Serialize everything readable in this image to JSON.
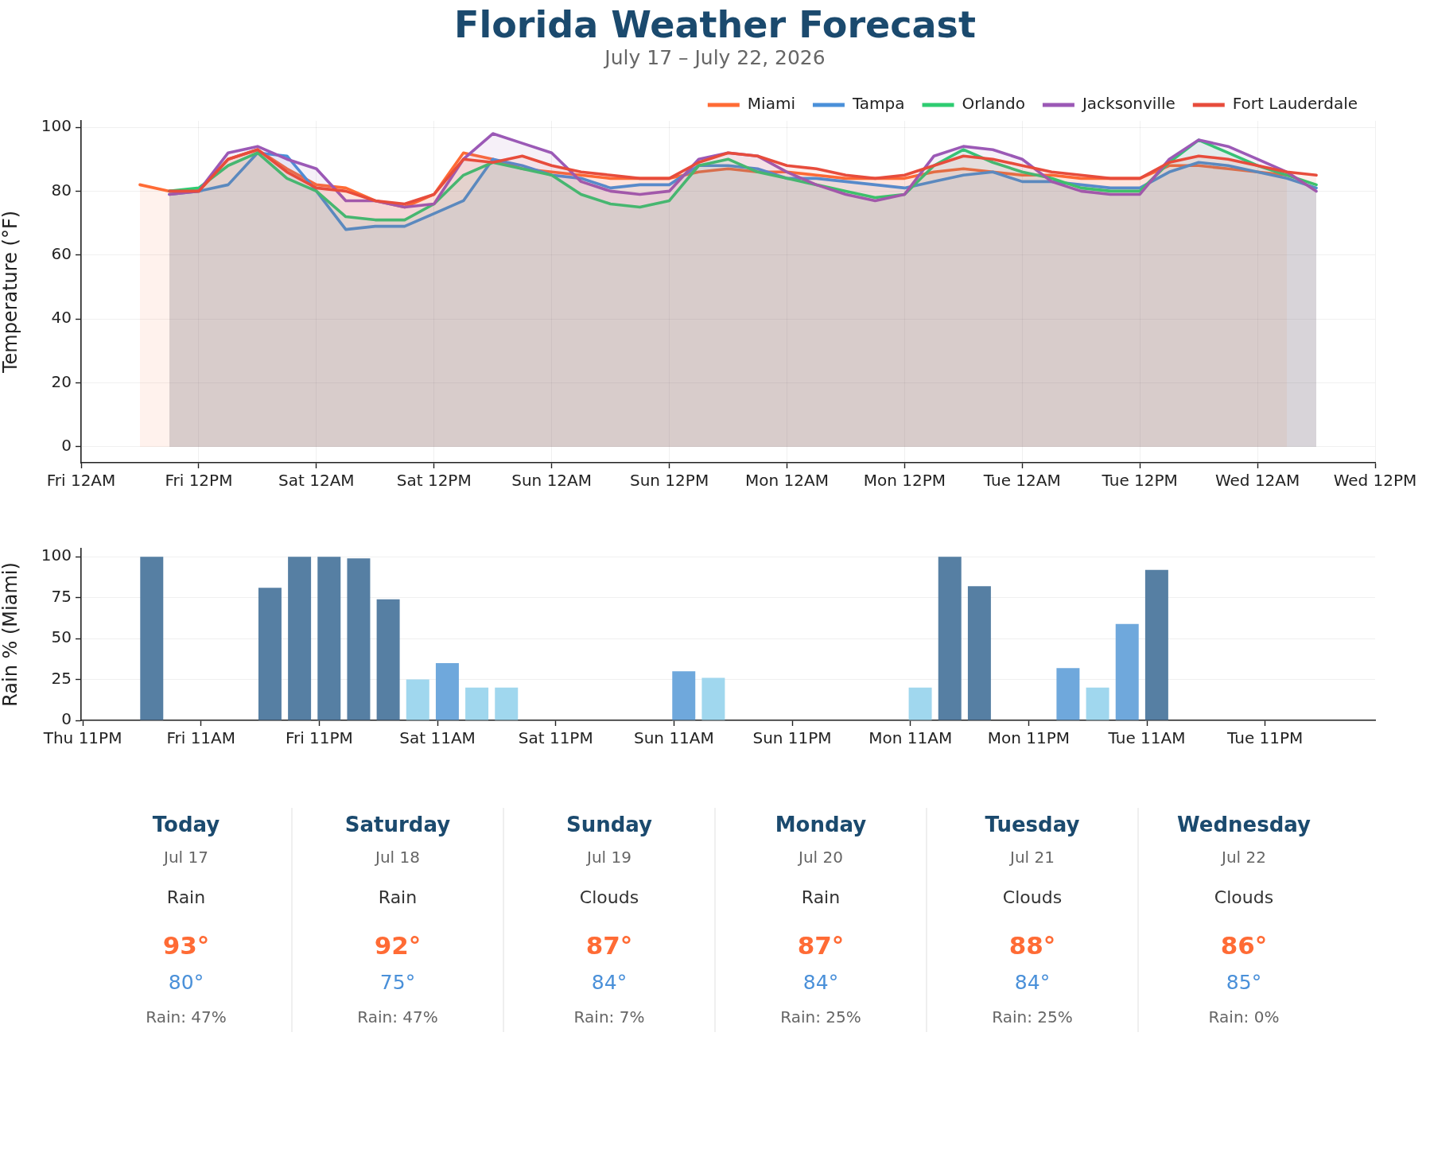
{
  "chart_data": [
    {
      "type": "area",
      "title": "Florida Weather Forecast",
      "subtitle": "July 17 – July 22, 2026",
      "ylabel": "Temperature (°F)",
      "x": [
        "2026-07-17T06:00",
        "2026-07-17T09:00",
        "2026-07-17T12:00",
        "2026-07-17T15:00",
        "2026-07-17T18:00",
        "2026-07-17T21:00",
        "2026-07-18T00:00",
        "2026-07-18T03:00",
        "2026-07-18T06:00",
        "2026-07-18T09:00",
        "2026-07-18T12:00",
        "2026-07-18T15:00",
        "2026-07-18T18:00",
        "2026-07-18T21:00",
        "2026-07-19T00:00",
        "2026-07-19T03:00",
        "2026-07-19T06:00",
        "2026-07-19T09:00",
        "2026-07-19T12:00",
        "2026-07-19T15:00",
        "2026-07-19T18:00",
        "2026-07-19T21:00",
        "2026-07-20T00:00",
        "2026-07-20T03:00",
        "2026-07-20T06:00",
        "2026-07-20T09:00",
        "2026-07-20T12:00",
        "2026-07-20T15:00",
        "2026-07-20T18:00",
        "2026-07-20T21:00",
        "2026-07-21T00:00",
        "2026-07-21T03:00",
        "2026-07-21T06:00",
        "2026-07-21T09:00",
        "2026-07-21T12:00",
        "2026-07-21T15:00",
        "2026-07-21T18:00",
        "2026-07-21T21:00",
        "2026-07-22T00:00",
        "2026-07-22T03:00",
        "2026-07-22T06:00"
      ],
      "series": [
        {
          "name": "Miami",
          "color": "#ff6b35",
          "values": [
            82,
            80,
            80,
            90,
            93,
            87,
            82,
            81,
            77,
            75,
            79,
            92,
            90,
            87,
            86,
            85,
            84,
            84,
            84,
            86,
            87,
            86,
            86,
            85,
            84,
            84,
            84,
            86,
            87,
            86,
            85,
            85,
            84,
            84,
            84,
            88,
            88,
            87,
            86,
            85,
            null
          ]
        },
        {
          "name": "Tampa",
          "color": "#4a90d9",
          "values": [
            null,
            79,
            80,
            82,
            92,
            91,
            80,
            68,
            69,
            69,
            73,
            77,
            90,
            88,
            85,
            84,
            81,
            82,
            82,
            88,
            88,
            87,
            84,
            84,
            83,
            82,
            81,
            83,
            85,
            86,
            83,
            83,
            82,
            81,
            81,
            86,
            89,
            88,
            86,
            84,
            81
          ]
        },
        {
          "name": "Orlando",
          "color": "#2ecc71",
          "values": [
            null,
            80,
            81,
            88,
            92,
            84,
            80,
            72,
            71,
            71,
            76,
            85,
            89,
            87,
            85,
            79,
            76,
            75,
            77,
            88,
            90,
            86,
            84,
            82,
            80,
            78,
            79,
            88,
            93,
            89,
            86,
            84,
            81,
            80,
            80,
            89,
            96,
            92,
            88,
            85,
            82
          ]
        },
        {
          "name": "Jacksonville",
          "color": "#9b59b6",
          "values": [
            null,
            79,
            80,
            92,
            94,
            90,
            87,
            77,
            77,
            75,
            76,
            90,
            98,
            95,
            92,
            83,
            80,
            79,
            80,
            90,
            92,
            91,
            86,
            82,
            79,
            77,
            79,
            91,
            94,
            93,
            90,
            83,
            80,
            79,
            79,
            90,
            96,
            94,
            90,
            86,
            80
          ]
        },
        {
          "name": "Fort Lauderdale",
          "color": "#e74c3c",
          "values": [
            null,
            80,
            80,
            90,
            93,
            86,
            81,
            80,
            77,
            76,
            79,
            90,
            89,
            91,
            88,
            86,
            85,
            84,
            84,
            89,
            92,
            91,
            88,
            87,
            85,
            84,
            85,
            88,
            91,
            90,
            88,
            86,
            85,
            84,
            84,
            89,
            91,
            90,
            88,
            86,
            85
          ]
        }
      ],
      "xlim": [
        "2026-07-17T00:00",
        "2026-07-22T12:00"
      ],
      "xticks": [
        {
          "value": "2026-07-17T00:00",
          "label": "Fri 12AM"
        },
        {
          "value": "2026-07-17T12:00",
          "label": "Fri 12PM"
        },
        {
          "value": "2026-07-18T00:00",
          "label": "Sat 12AM"
        },
        {
          "value": "2026-07-18T12:00",
          "label": "Sat 12PM"
        },
        {
          "value": "2026-07-19T00:00",
          "label": "Sun 12AM"
        },
        {
          "value": "2026-07-19T12:00",
          "label": "Sun 12PM"
        },
        {
          "value": "2026-07-20T00:00",
          "label": "Mon 12AM"
        },
        {
          "value": "2026-07-20T12:00",
          "label": "Mon 12PM"
        },
        {
          "value": "2026-07-21T00:00",
          "label": "Tue 12AM"
        },
        {
          "value": "2026-07-21T12:00",
          "label": "Tue 12PM"
        },
        {
          "value": "2026-07-22T00:00",
          "label": "Wed 12AM"
        },
        {
          "value": "2026-07-22T12:00",
          "label": "Wed 12PM"
        }
      ],
      "ylim": [
        -5,
        102
      ],
      "yticks": [
        0,
        20,
        40,
        60,
        80,
        100
      ],
      "grid": true,
      "legend": "top right"
    },
    {
      "type": "bar",
      "ylabel": "Rain % (Miami)",
      "x": [
        "2026-07-17T06:00",
        "2026-07-17T09:00",
        "2026-07-17T12:00",
        "2026-07-17T15:00",
        "2026-07-17T18:00",
        "2026-07-17T21:00",
        "2026-07-18T00:00",
        "2026-07-18T03:00",
        "2026-07-18T06:00",
        "2026-07-18T09:00",
        "2026-07-18T12:00",
        "2026-07-18T15:00",
        "2026-07-18T18:00",
        "2026-07-18T21:00",
        "2026-07-19T00:00",
        "2026-07-19T03:00",
        "2026-07-19T06:00",
        "2026-07-19T09:00",
        "2026-07-19T12:00",
        "2026-07-19T15:00",
        "2026-07-19T18:00",
        "2026-07-19T21:00",
        "2026-07-20T00:00",
        "2026-07-20T03:00",
        "2026-07-20T06:00",
        "2026-07-20T09:00",
        "2026-07-20T12:00",
        "2026-07-20T15:00",
        "2026-07-20T18:00",
        "2026-07-20T21:00",
        "2026-07-21T00:00",
        "2026-07-21T03:00",
        "2026-07-21T06:00",
        "2026-07-21T09:00",
        "2026-07-21T12:00",
        "2026-07-21T15:00",
        "2026-07-21T18:00",
        "2026-07-21T21:00",
        "2026-07-22T00:00",
        "2026-07-22T03:00"
      ],
      "values": [
        100,
        0,
        0,
        0,
        81,
        100,
        100,
        99,
        74,
        25,
        35,
        20,
        20,
        0,
        0,
        0,
        0,
        0,
        30,
        26,
        0,
        0,
        0,
        0,
        0,
        0,
        20,
        100,
        82,
        0,
        0,
        32,
        20,
        59,
        92,
        0,
        0,
        0,
        0,
        0
      ],
      "colors": [
        "#567fa3",
        "#a0d7ee",
        "#a0d7ee",
        "#a0d7ee",
        "#567fa3",
        "#567fa3",
        "#567fa3",
        "#567fa3",
        "#567fa3",
        "#a0d7ee",
        "#6fa8dc",
        "#a0d7ee",
        "#a0d7ee",
        "#a0d7ee",
        "#a0d7ee",
        "#a0d7ee",
        "#a0d7ee",
        "#a0d7ee",
        "#6fa8dc",
        "#a0d7ee",
        "#a0d7ee",
        "#a0d7ee",
        "#a0d7ee",
        "#a0d7ee",
        "#a0d7ee",
        "#a0d7ee",
        "#a0d7ee",
        "#567fa3",
        "#567fa3",
        "#a0d7ee",
        "#a0d7ee",
        "#6fa8dc",
        "#a0d7ee",
        "#6fa8dc",
        "#567fa3",
        "#a0d7ee",
        "#a0d7ee",
        "#a0d7ee",
        "#a0d7ee",
        "#a0d7ee"
      ],
      "xlim": [
        "2026-07-16T22:50",
        "2026-07-22T10:10"
      ],
      "xticks": [
        {
          "value": "2026-07-16T23:00",
          "label": "Thu 11PM"
        },
        {
          "value": "2026-07-17T11:00",
          "label": "Fri 11AM"
        },
        {
          "value": "2026-07-17T23:00",
          "label": "Fri 11PM"
        },
        {
          "value": "2026-07-18T11:00",
          "label": "Sat 11AM"
        },
        {
          "value": "2026-07-18T23:00",
          "label": "Sat 11PM"
        },
        {
          "value": "2026-07-19T11:00",
          "label": "Sun 11AM"
        },
        {
          "value": "2026-07-19T23:00",
          "label": "Sun 11PM"
        },
        {
          "value": "2026-07-20T11:00",
          "label": "Mon 11AM"
        },
        {
          "value": "2026-07-20T23:00",
          "label": "Mon 11PM"
        },
        {
          "value": "2026-07-21T11:00",
          "label": "Tue 11AM"
        },
        {
          "value": "2026-07-21T23:00",
          "label": "Tue 11PM"
        }
      ],
      "ylim": [
        0,
        105
      ],
      "yticks": [
        0,
        25,
        50,
        75,
        100
      ],
      "grid": "y"
    },
    {
      "type": "other",
      "categories": [
        "Today",
        "Saturday",
        "Sunday",
        "Monday",
        "Tuesday",
        "Wednesday"
      ],
      "annotations": [
        "Jul 17",
        "Rain",
        "93°",
        "80°",
        "Rain: 47%",
        "Jul 18",
        "Rain",
        "92°",
        "75°",
        "Rain: 47%",
        "Jul 19",
        "Clouds",
        "87°",
        "84°",
        "Rain: 7%",
        "Jul 20",
        "Rain",
        "87°",
        "84°",
        "Rain: 25%",
        "Jul 21",
        "Clouds",
        "88°",
        "84°",
        "Rain: 25%",
        "Jul 22",
        "Clouds",
        "86°",
        "85°",
        "Rain: 0%"
      ]
    }
  ]
}
